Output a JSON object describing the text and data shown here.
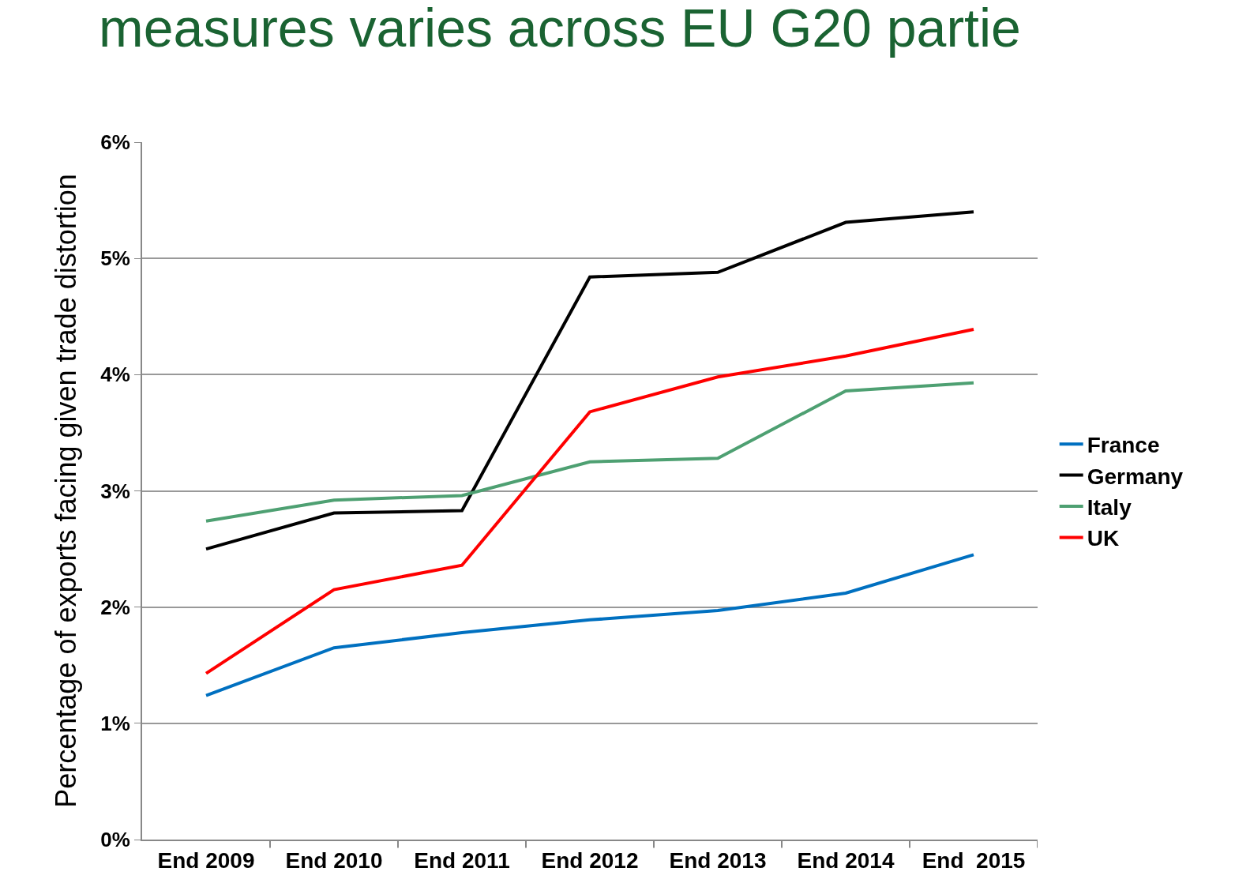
{
  "chart_data": {
    "type": "line",
    "title": "measures varies across EU G20 partie",
    "ylabel": "Percentage of exports facing given trade distortion",
    "categories": [
      "End 2009",
      "End 2010",
      "End 2011",
      "End 2012",
      "End 2013",
      "End 2014",
      "End  2015"
    ],
    "series": [
      {
        "name": "France",
        "color": "#0070c0",
        "values": [
          1.24,
          1.65,
          1.78,
          1.89,
          1.97,
          2.12,
          2.45
        ]
      },
      {
        "name": "Germany",
        "color": "#000000",
        "values": [
          2.5,
          2.81,
          2.83,
          4.84,
          4.88,
          5.31,
          5.4
        ]
      },
      {
        "name": "Italy",
        "color": "#4ea072",
        "values": [
          2.74,
          2.92,
          2.96,
          3.25,
          3.28,
          3.86,
          3.93
        ]
      },
      {
        "name": "UK",
        "color": "#ff0000",
        "values": [
          1.43,
          2.15,
          2.36,
          3.68,
          3.98,
          4.16,
          4.39
        ]
      }
    ],
    "ylim": [
      0,
      6
    ],
    "yticks": [
      {
        "value": 0,
        "label": "0%"
      },
      {
        "value": 1,
        "label": "1%"
      },
      {
        "value": 2,
        "label": "2%"
      },
      {
        "value": 3,
        "label": "3%"
      },
      {
        "value": 4,
        "label": "4%"
      },
      {
        "value": 5,
        "label": "5%"
      },
      {
        "value": 6,
        "label": "6%"
      }
    ],
    "grid": "y",
    "legend": "right",
    "marker": "none",
    "line_style": "solid"
  }
}
